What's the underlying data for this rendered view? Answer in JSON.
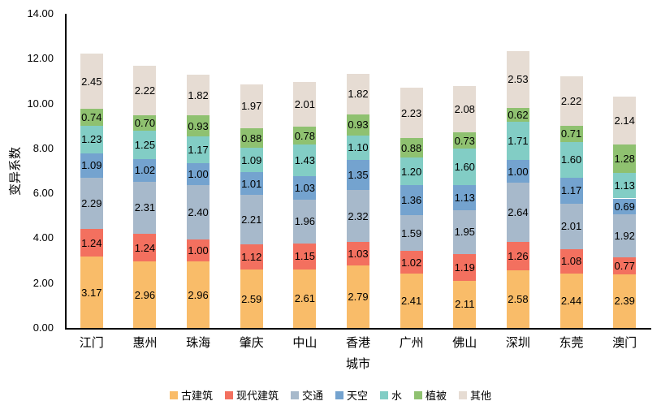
{
  "chart_data": {
    "type": "bar",
    "subtype": "stacked-vertical",
    "title": "",
    "xlabel": "城市",
    "ylabel": "变异系数",
    "ylim": [
      0,
      14
    ],
    "ytick_labels": [
      "0.00",
      "2.00",
      "4.00",
      "6.00",
      "8.00",
      "10.00",
      "12.00",
      "14.00"
    ],
    "grid": false,
    "legend_position": "bottom",
    "value_labels": true,
    "categories": [
      "江门",
      "惠州",
      "珠海",
      "肇庆",
      "中山",
      "香港",
      "广州",
      "佛山",
      "深圳",
      "东莞",
      "澳门"
    ],
    "series": [
      {
        "name": "古建筑",
        "color": "#F9BC69",
        "values": [
          3.17,
          2.96,
          2.96,
          2.59,
          2.61,
          2.79,
          2.41,
          2.11,
          2.58,
          2.44,
          2.39
        ]
      },
      {
        "name": "现代建筑",
        "color": "#F3705F",
        "values": [
          1.24,
          1.24,
          1.0,
          1.12,
          1.15,
          1.03,
          1.02,
          1.19,
          1.26,
          1.08,
          0.77
        ]
      },
      {
        "name": "交通",
        "color": "#A7B9CB",
        "values": [
          2.29,
          2.31,
          2.4,
          2.21,
          1.96,
          2.32,
          1.59,
          1.95,
          2.64,
          2.01,
          1.92
        ]
      },
      {
        "name": "天空",
        "color": "#74A3CF",
        "values": [
          1.09,
          1.02,
          1.0,
          1.01,
          1.03,
          1.35,
          1.36,
          1.13,
          1.0,
          1.17,
          0.69
        ]
      },
      {
        "name": "水",
        "color": "#82CDC5",
        "values": [
          1.23,
          1.25,
          1.17,
          1.09,
          1.43,
          1.1,
          1.2,
          1.6,
          1.71,
          1.6,
          1.13
        ]
      },
      {
        "name": "植被",
        "color": "#8FC170",
        "values": [
          0.74,
          0.7,
          0.93,
          0.88,
          0.78,
          0.93,
          0.88,
          0.73,
          0.62,
          0.71,
          1.28
        ]
      },
      {
        "name": "其他",
        "color": "#E6DCD3",
        "values": [
          2.45,
          2.22,
          1.82,
          1.97,
          2.01,
          1.82,
          2.23,
          2.08,
          2.53,
          2.22,
          2.14
        ]
      }
    ]
  }
}
